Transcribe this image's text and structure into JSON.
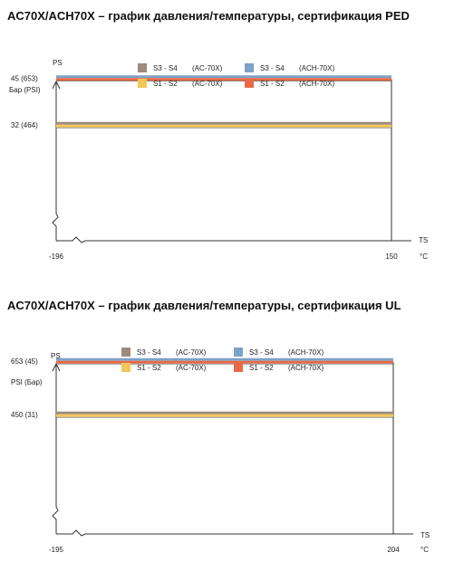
{
  "colors": {
    "s3s4_ac70x": "#9c8a7d",
    "s3s4_ach70x": "#7ea1c9",
    "s1s2_ac70x": "#f3c65a",
    "s1s2_ach70x": "#e86a44",
    "axis": "#333333"
  },
  "chart_data": [
    {
      "type": "line",
      "title": "AC70X/ACH70X – график давления/температуры, сертификация PED",
      "ylabel": "PS",
      "yunit_label": "Бар (PSI)",
      "xlabel": "TS",
      "xunit": "°C",
      "x_tick_labels": [
        "-196",
        "150"
      ],
      "y_tick_labels": [
        "45  (653)",
        "32  (464)"
      ],
      "xlim": [
        -196,
        150
      ],
      "ylim": [
        0,
        52
      ],
      "y_unit": "bar",
      "legend": [
        {
          "name": "S3 - S4",
          "model": "(AC-70X)",
          "color": "#9c8a7d"
        },
        {
          "name": "S3 - S4",
          "model": "(ACH-70X)",
          "color": "#7ea1c9"
        },
        {
          "name": "S1 - S2",
          "model": "(AC-70X)",
          "color": "#f3c65a"
        },
        {
          "name": "S1 - S2",
          "model": "(ACH-70X)",
          "color": "#e86a44"
        }
      ],
      "series": [
        {
          "name": "S3 - S4 (ACH-70X)",
          "color": "#7ea1c9",
          "x": [
            -196,
            150
          ],
          "values": [
            45,
            45
          ]
        },
        {
          "name": "S1 - S2 (ACH-70X)",
          "color": "#e86a44",
          "x": [
            -196,
            150
          ],
          "values": [
            45,
            45
          ]
        },
        {
          "name": "S3 - S4 (AC-70X)",
          "color": "#9c8a7d",
          "x": [
            -196,
            150
          ],
          "values": [
            32,
            32
          ]
        },
        {
          "name": "S1 - S2 (AC-70X)",
          "color": "#f3c65a",
          "x": [
            -196,
            150
          ],
          "values": [
            32,
            32
          ]
        }
      ]
    },
    {
      "type": "line",
      "title": "AC70X/ACH70X – график давления/температуры, сертификация UL",
      "ylabel": "PS",
      "yunit_label": "PSI (Бар)",
      "xlabel": "TS",
      "xunit": "°C",
      "x_tick_labels": [
        "-195",
        "204"
      ],
      "y_tick_labels": [
        "653 (45)",
        "450 (31)"
      ],
      "xlim": [
        -195,
        204
      ],
      "ylim": [
        0,
        750
      ],
      "y_unit": "psi",
      "legend": [
        {
          "name": "S3 - S4",
          "model": "(AC-70X)",
          "color": "#9c8a7d"
        },
        {
          "name": "S3 - S4",
          "model": "(ACH-70X)",
          "color": "#7ea1c9"
        },
        {
          "name": "S1 - S2",
          "model": "(AC-70X)",
          "color": "#f3c65a"
        },
        {
          "name": "S1 - S2",
          "model": "(ACH-70X)",
          "color": "#e86a44"
        }
      ],
      "series": [
        {
          "name": "S3 - S4 (ACH-70X)",
          "color": "#7ea1c9",
          "x": [
            -195,
            204
          ],
          "values": [
            653,
            653
          ]
        },
        {
          "name": "S1 - S2 (ACH-70X)",
          "color": "#e86a44",
          "x": [
            -195,
            204
          ],
          "values": [
            653,
            653
          ]
        },
        {
          "name": "S3 - S4 (AC-70X)",
          "color": "#9c8a7d",
          "x": [
            -195,
            204
          ],
          "values": [
            450,
            450
          ]
        },
        {
          "name": "S1 - S2 (AC-70X)",
          "color": "#f3c65a",
          "x": [
            -195,
            204
          ],
          "values": [
            450,
            450
          ]
        }
      ]
    }
  ]
}
